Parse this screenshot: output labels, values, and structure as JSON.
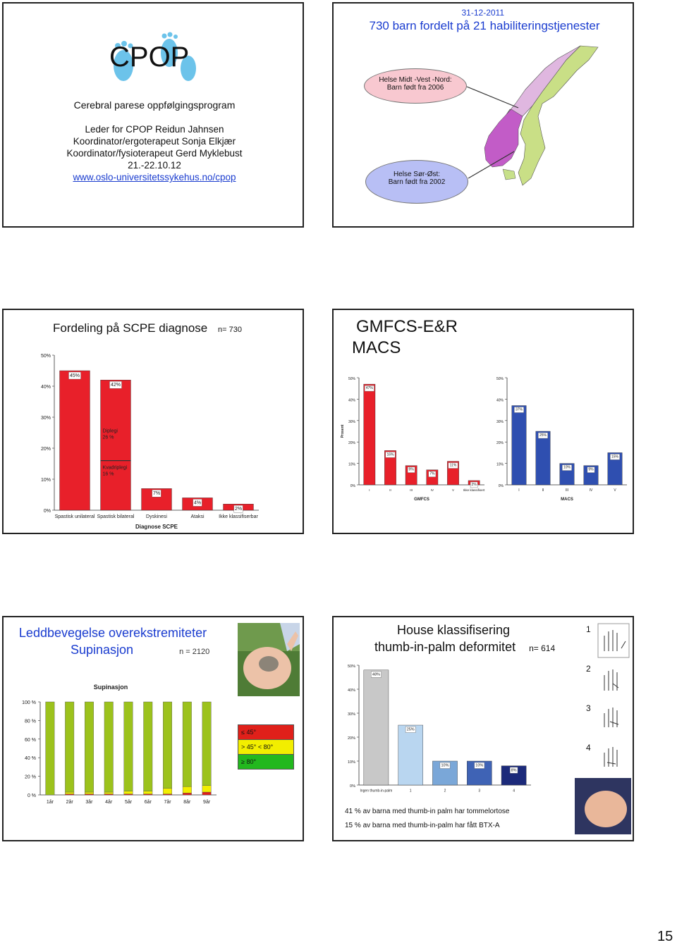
{
  "page_number": "15",
  "slide1": {
    "logo_text": "CPOP",
    "subtitle": "Cerebral parese oppfølgingsprogram",
    "lines": [
      "Leder for CPOP Reidun Jahnsen",
      "Koordinator/ergoterapeut Sonja Elkjær",
      "Koordinator/fysioterapeut Gerd Myklebust",
      "21.-22.10.12"
    ],
    "link": "www.oslo-universitetssykehus.no/cpop"
  },
  "slide2": {
    "date": "31-12-2011",
    "title": "730 barn fordelt på 21 habiliteringstjenester",
    "bubble_top_line1": "Helse Midt -Vest -Nord:",
    "bubble_top_line2": "Barn født fra 2006",
    "bubble_bottom_line1": "Helse Sør-Øst:",
    "bubble_bottom_line2": "Barn født fra 2002"
  },
  "slide3": {
    "title": "Fordeling på SCPE diagnose",
    "n_label": "n= 730",
    "annotations": {
      "diplegi": "Diplegi",
      "diplegi_pct": "26 %",
      "kvadriplegi": "Kvadriplegi",
      "kvadriplegi_pct": "16 %"
    },
    "chart_data": {
      "type": "bar",
      "categories": [
        "Spastisk unilateral",
        "Spastisk bilateral",
        "Dyskinesi",
        "Ataksi",
        "Ikke klassifiserbar"
      ],
      "values": [
        45,
        42,
        7,
        4,
        2
      ],
      "data_labels": [
        "45%",
        "42%",
        "7%",
        "4%",
        "2%"
      ],
      "xlabel": "Diagnose SCPE",
      "ylim": [
        0,
        50
      ],
      "yticks": [
        "0%",
        "10%",
        "20%",
        "30%",
        "40%",
        "50%"
      ],
      "color": "#e8202a"
    }
  },
  "slide4": {
    "title_line1": "GMFCS-E&R",
    "title_line2": "MACS",
    "chart_data": [
      {
        "type": "bar",
        "categories": [
          "I",
          "II",
          "III",
          "IV",
          "V",
          "Ikke klassifisert"
        ],
        "values": [
          47,
          16,
          9,
          7,
          11,
          2
        ],
        "data_labels": [
          "47%",
          "16%",
          "9%",
          "7%",
          "11%",
          "2%"
        ],
        "xlabel": "GMFCS",
        "ylabel": "Prosent",
        "ylim": [
          0,
          50
        ],
        "yticks": [
          "0%",
          "10%",
          "20%",
          "30%",
          "40%",
          "50%"
        ],
        "color": "#e8202a"
      },
      {
        "type": "bar",
        "categories": [
          "I",
          "II",
          "III",
          "IV",
          "V"
        ],
        "values": [
          37,
          25,
          10,
          9,
          15
        ],
        "data_labels": [
          "37%",
          "25%",
          "10%",
          "9%",
          "15%"
        ],
        "xlabel": "MACS",
        "ylim": [
          0,
          50
        ],
        "yticks": [
          "0%",
          "10%",
          "20%",
          "30%",
          "40%",
          "50%"
        ],
        "color": "#2f4fb0"
      }
    ]
  },
  "slide5": {
    "title_line1": "Leddbevegelse overekstremiteter",
    "title_line2": "Supinasjon",
    "n_label": "n = 2120",
    "legend": [
      {
        "label": "≤ 45°",
        "color": "#e0201a"
      },
      {
        "label": "> 45°  < 80°",
        "color": "#f2ee00"
      },
      {
        "label": "≥ 80°",
        "color": "#22b81e"
      }
    ],
    "chart_data": {
      "type": "bar",
      "stacked": true,
      "title": "Supinasjon",
      "categories": [
        "1år",
        "2år",
        "3år",
        "4år",
        "5år",
        "6år",
        "7år",
        "8år",
        "9år"
      ],
      "yticks": [
        "0 %",
        "20 %",
        "40 %",
        "60 %",
        "80 %",
        "100 %"
      ],
      "ylim": [
        0,
        100
      ],
      "series": [
        {
          "name": "≤ 45°",
          "values": [
            0,
            1,
            1,
            1,
            1,
            1,
            1,
            2,
            3
          ],
          "color": "#e0201a"
        },
        {
          "name": "> 45°  < 80°",
          "values": [
            0,
            2,
            2,
            2,
            3,
            3,
            6,
            7,
            7
          ],
          "color": "#f2ee00"
        },
        {
          "name": "≥ 80°",
          "values": [
            100,
            97,
            97,
            97,
            96,
            96,
            93,
            91,
            90
          ],
          "color": "#9cc21c"
        }
      ]
    }
  },
  "slide6": {
    "title_line1": "House klassifisering",
    "title_line2": "thumb-in-palm deformitet",
    "n_label": "n= 614",
    "house_levels": [
      "1",
      "2",
      "3",
      "4"
    ],
    "note1": "41 % av barna med thumb-in palm har tommelortose",
    "note2": "15 % av barna med thumb-in-palm har fått BTX-A",
    "chart_data": {
      "type": "bar",
      "categories": [
        "Ingen thumb-in-palm",
        "1",
        "2",
        "3",
        "4"
      ],
      "values": [
        48,
        25,
        10,
        10,
        8
      ],
      "data_labels": [
        "48%",
        "25%",
        "10%",
        "10%",
        "8%"
      ],
      "ylim": [
        0,
        50
      ],
      "yticks": [
        "0%",
        "10%",
        "20%",
        "30%",
        "40%",
        "50%"
      ],
      "colors": [
        "#c8c8c8",
        "#b9d6f0",
        "#7aa7d8",
        "#3f63b5",
        "#1c2a7a"
      ]
    }
  }
}
